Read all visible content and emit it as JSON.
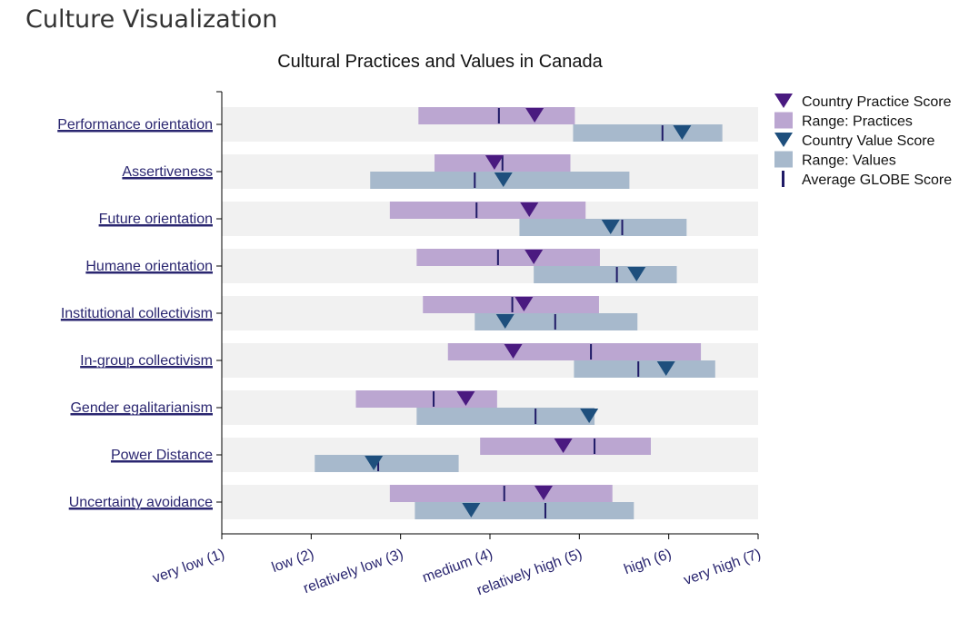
{
  "page": {
    "title": "Culture Visualization"
  },
  "chart_data": {
    "type": "range-dot",
    "title": "Cultural Practices and Values in Canada",
    "xlim": [
      1,
      7
    ],
    "ticks": [
      {
        "value": 1,
        "label": "very low (1)"
      },
      {
        "value": 2,
        "label": "low (2)"
      },
      {
        "value": 3,
        "label": "relatively low (3)"
      },
      {
        "value": 4,
        "label": "medium (4)"
      },
      {
        "value": 5,
        "label": "relatively high (5)"
      },
      {
        "value": 6,
        "label": "high (6)"
      },
      {
        "value": 7,
        "label": "very high (7)"
      }
    ],
    "colors": {
      "practice_range": "#bba6d1",
      "value_range": "#a7b9cc",
      "practice_marker": "#4a1a80",
      "value_marker": "#1e4f7d",
      "average": "#1f1a66",
      "row_band": "#f1f1f1"
    },
    "legend": {
      "placement": "right",
      "items": [
        {
          "name": "Country Practice Score",
          "symbol": "triangle",
          "color": "#4a1a80"
        },
        {
          "name": "Range: Practices",
          "symbol": "square",
          "color": "#bba6d1"
        },
        {
          "name": "Country Value Score",
          "symbol": "triangle",
          "color": "#1e4f7d"
        },
        {
          "name": "Range: Values",
          "symbol": "square",
          "color": "#a7b9cc"
        },
        {
          "name": "Average GLOBE Score",
          "symbol": "bar",
          "color": "#1f1a66"
        }
      ]
    },
    "dimensions": [
      {
        "name": "Performance orientation",
        "practices": {
          "range": [
            3.2,
            4.95
          ],
          "score": 4.5,
          "average": 4.1
        },
        "values": {
          "range": [
            4.93,
            6.6
          ],
          "score": 6.15,
          "average": 5.93
        }
      },
      {
        "name": "Assertiveness",
        "practices": {
          "range": [
            3.38,
            4.9
          ],
          "score": 4.05,
          "average": 4.14
        },
        "values": {
          "range": [
            2.66,
            5.56
          ],
          "score": 4.15,
          "average": 3.83
        }
      },
      {
        "name": "Future orientation",
        "practices": {
          "range": [
            2.88,
            5.07
          ],
          "score": 4.44,
          "average": 3.85
        },
        "values": {
          "range": [
            4.33,
            6.2
          ],
          "score": 5.35,
          "average": 5.48
        }
      },
      {
        "name": "Humane orientation",
        "practices": {
          "range": [
            3.18,
            5.23
          ],
          "score": 4.49,
          "average": 4.09
        },
        "values": {
          "range": [
            4.49,
            6.09
          ],
          "score": 5.64,
          "average": 5.42
        }
      },
      {
        "name": "Institutional collectivism",
        "practices": {
          "range": [
            3.25,
            5.22
          ],
          "score": 4.38,
          "average": 4.25
        },
        "values": {
          "range": [
            3.83,
            5.65
          ],
          "score": 4.17,
          "average": 4.73
        }
      },
      {
        "name": "In-group collectivism",
        "practices": {
          "range": [
            3.53,
            6.36
          ],
          "score": 4.26,
          "average": 5.13
        },
        "values": {
          "range": [
            4.94,
            6.52
          ],
          "score": 5.97,
          "average": 5.66
        }
      },
      {
        "name": "Gender egalitarianism",
        "practices": {
          "range": [
            2.5,
            4.08
          ],
          "score": 3.73,
          "average": 3.37
        },
        "values": {
          "range": [
            3.18,
            5.17
          ],
          "score": 5.11,
          "average": 4.51
        }
      },
      {
        "name": "Power Distance",
        "practices": {
          "range": [
            3.89,
            5.8
          ],
          "score": 4.82,
          "average": 5.17
        },
        "values": {
          "range": [
            2.04,
            3.65
          ],
          "score": 2.7,
          "average": 2.75
        }
      },
      {
        "name": "Uncertainty avoidance",
        "practices": {
          "range": [
            2.88,
            5.37
          ],
          "score": 4.6,
          "average": 4.16
        },
        "values": {
          "range": [
            3.16,
            5.61
          ],
          "score": 3.79,
          "average": 4.62
        }
      }
    ]
  }
}
